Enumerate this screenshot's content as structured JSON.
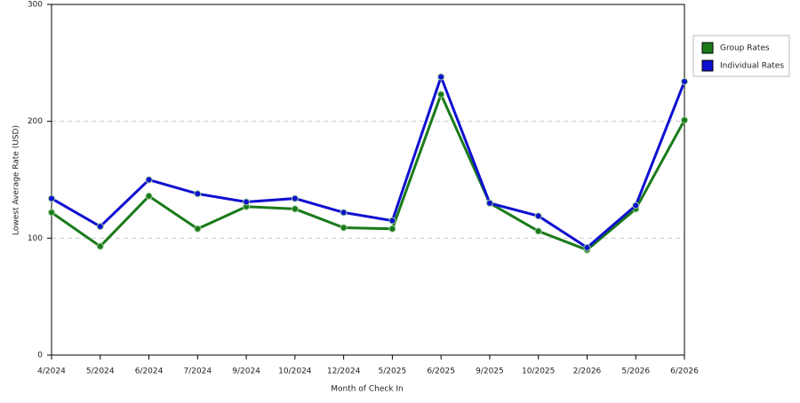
{
  "chart_data": {
    "type": "line",
    "x_label": "Month of Check In",
    "y_label": "Lowest Average Rate (USD)",
    "categories": [
      "4/2024",
      "5/2024",
      "6/2024",
      "7/2024",
      "9/2024",
      "10/2024",
      "12/2024",
      "5/2025",
      "6/2025",
      "9/2025",
      "10/2025",
      "2/2026",
      "5/2026",
      "6/2026"
    ],
    "series": [
      {
        "name": "Group Rates",
        "color": "#1a7a1a",
        "values": [
          122,
          93,
          136,
          108,
          127,
          125,
          109,
          108,
          223,
          130,
          106,
          90,
          125,
          201
        ]
      },
      {
        "name": "Individual Rates",
        "color": "#1010d0",
        "values": [
          134,
          110,
          150,
          138,
          131,
          134,
          122,
          115,
          238,
          130,
          119,
          92,
          128,
          234
        ]
      }
    ],
    "ylim": [
      0,
      300
    ],
    "yticks": [
      0,
      100,
      200,
      300
    ],
    "grid": true,
    "legend": "right"
  }
}
